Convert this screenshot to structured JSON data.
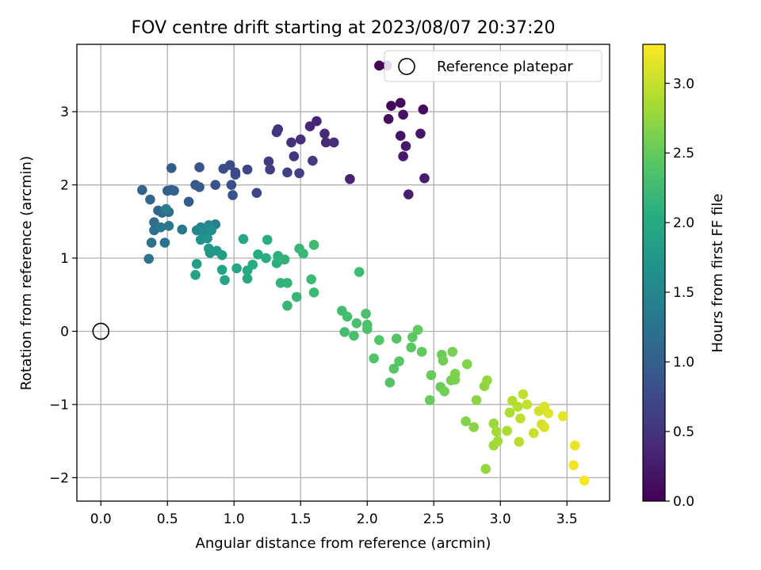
{
  "chart_data": {
    "type": "scatter",
    "title": "FOV centre drift starting at 2023/08/07 20:37:20",
    "xlabel": "Angular distance from reference (arcmin)",
    "ylabel": "Rotation from reference (arcmin)",
    "xlim": [
      -0.18,
      3.82
    ],
    "ylim": [
      -2.32,
      3.92
    ],
    "xticks": [
      0.0,
      0.5,
      1.0,
      1.5,
      2.0,
      2.5,
      3.0,
      3.5
    ],
    "xtick_labels": [
      "0.0",
      "0.5",
      "1.0",
      "1.5",
      "2.0",
      "2.5",
      "3.0",
      "3.5"
    ],
    "yticks": [
      -2,
      -1,
      0,
      1,
      2,
      3
    ],
    "ytick_labels": [
      "−2",
      "−1",
      "0",
      "1",
      "2",
      "3"
    ],
    "grid": true,
    "legend": {
      "placement": "top-right",
      "entries": [
        "Reference platepar"
      ]
    },
    "reference_point": {
      "x": 0.0,
      "y": 0.0
    },
    "colorbar": {
      "label": "Hours from first FF file",
      "range": [
        0.0,
        3.28
      ],
      "ticks": [
        0.0,
        0.5,
        1.0,
        1.5,
        2.0,
        2.5,
        3.0
      ],
      "tick_labels": [
        "0.0",
        "0.5",
        "1.0",
        "1.5",
        "2.0",
        "2.5",
        "3.0"
      ],
      "colormap": "viridis"
    },
    "points": [
      [
        2.09,
        3.63,
        0.0
      ],
      [
        2.15,
        3.63,
        0.02
      ],
      [
        2.18,
        3.08,
        0.05
      ],
      [
        2.25,
        3.12,
        0.07
      ],
      [
        2.42,
        3.03,
        0.1
      ],
      [
        2.16,
        2.9,
        0.12
      ],
      [
        2.27,
        2.96,
        0.15
      ],
      [
        2.25,
        2.67,
        0.17
      ],
      [
        2.4,
        2.7,
        0.2
      ],
      [
        2.29,
        2.53,
        0.22
      ],
      [
        2.27,
        2.39,
        0.24
      ],
      [
        2.43,
        2.09,
        0.27
      ],
      [
        2.31,
        1.87,
        0.29
      ],
      [
        1.87,
        2.08,
        0.31
      ],
      [
        1.62,
        2.87,
        0.34
      ],
      [
        1.57,
        2.8,
        0.36
      ],
      [
        1.68,
        2.7,
        0.38
      ],
      [
        1.69,
        2.58,
        0.4
      ],
      [
        1.75,
        2.58,
        0.42
      ],
      [
        1.5,
        2.62,
        0.45
      ],
      [
        1.43,
        2.58,
        0.47
      ],
      [
        1.33,
        2.76,
        0.49
      ],
      [
        1.32,
        2.72,
        0.51
      ],
      [
        1.45,
        2.39,
        0.54
      ],
      [
        1.59,
        2.33,
        0.56
      ],
      [
        1.26,
        2.32,
        0.58
      ],
      [
        1.27,
        2.21,
        0.61
      ],
      [
        1.4,
        2.17,
        0.63
      ],
      [
        1.49,
        2.16,
        0.65
      ],
      [
        1.17,
        1.89,
        0.68
      ],
      [
        1.1,
        2.21,
        0.7
      ],
      [
        1.01,
        2.17,
        0.72
      ],
      [
        1.01,
        2.14,
        0.75
      ],
      [
        0.97,
        2.27,
        0.77
      ],
      [
        0.92,
        2.22,
        0.79
      ],
      [
        0.98,
        2.0,
        0.82
      ],
      [
        0.99,
        1.86,
        0.84
      ],
      [
        0.86,
        2.0,
        0.86
      ],
      [
        0.74,
        2.24,
        0.89
      ],
      [
        0.71,
        2.0,
        0.91
      ],
      [
        0.74,
        1.97,
        0.93
      ],
      [
        0.66,
        1.77,
        0.96
      ],
      [
        0.53,
        2.23,
        0.98
      ],
      [
        0.53,
        1.93,
        1.0
      ],
      [
        0.5,
        1.92,
        1.02
      ],
      [
        0.55,
        1.92,
        1.05
      ],
      [
        0.31,
        1.93,
        1.07
      ],
      [
        0.37,
        1.8,
        1.09
      ],
      [
        0.43,
        1.65,
        1.11
      ],
      [
        0.46,
        1.62,
        1.14
      ],
      [
        0.51,
        1.63,
        1.16
      ],
      [
        0.4,
        1.49,
        1.18
      ],
      [
        0.4,
        1.38,
        1.2
      ],
      [
        0.38,
        1.21,
        1.23
      ],
      [
        0.48,
        1.21,
        1.25
      ],
      [
        0.36,
        0.99,
        1.27
      ],
      [
        0.61,
        1.39,
        1.29
      ],
      [
        0.51,
        1.44,
        1.32
      ],
      [
        0.45,
        1.42,
        1.34
      ],
      [
        0.49,
        1.67,
        1.36
      ],
      [
        0.86,
        1.46,
        1.38
      ],
      [
        0.72,
        1.38,
        1.46
      ],
      [
        0.75,
        1.42,
        1.5
      ],
      [
        0.81,
        1.45,
        1.54
      ],
      [
        0.77,
        1.35,
        1.58
      ],
      [
        0.83,
        1.38,
        1.61
      ],
      [
        0.75,
        1.25,
        1.65
      ],
      [
        0.8,
        1.27,
        1.69
      ],
      [
        0.82,
        1.07,
        1.72
      ],
      [
        0.87,
        1.1,
        1.76
      ],
      [
        0.81,
        1.13,
        1.78
      ],
      [
        0.91,
        1.04,
        1.82
      ],
      [
        0.72,
        0.92,
        1.85
      ],
      [
        0.71,
        0.77,
        1.88
      ],
      [
        0.91,
        0.84,
        1.9
      ],
      [
        0.93,
        0.7,
        1.93
      ],
      [
        1.02,
        0.86,
        1.95
      ],
      [
        1.07,
        1.26,
        1.97
      ],
      [
        1.1,
        0.72,
        1.99
      ],
      [
        1.1,
        0.83,
        2.0
      ],
      [
        1.14,
        0.91,
        2.02
      ],
      [
        1.18,
        1.05,
        2.04
      ],
      [
        1.24,
        1.0,
        2.05
      ],
      [
        1.25,
        1.25,
        2.07
      ],
      [
        1.32,
        0.93,
        2.08
      ],
      [
        1.33,
        1.03,
        2.1
      ],
      [
        1.35,
        0.98,
        2.11
      ],
      [
        1.38,
        0.98,
        2.13
      ],
      [
        1.35,
        0.66,
        2.14
      ],
      [
        1.4,
        0.66,
        2.15
      ],
      [
        1.4,
        0.35,
        2.17
      ],
      [
        1.47,
        0.47,
        2.18
      ],
      [
        1.49,
        1.13,
        2.19
      ],
      [
        1.52,
        1.06,
        2.21
      ],
      [
        1.58,
        0.71,
        2.22
      ],
      [
        1.6,
        0.53,
        2.23
      ],
      [
        1.6,
        1.18,
        2.24
      ],
      [
        1.94,
        0.81,
        2.25
      ],
      [
        1.81,
        0.28,
        2.27
      ],
      [
        1.83,
        -0.01,
        2.29
      ],
      [
        1.85,
        0.2,
        2.3
      ],
      [
        1.9,
        -0.06,
        2.31
      ],
      [
        1.92,
        0.11,
        2.32
      ],
      [
        1.99,
        0.24,
        2.33
      ],
      [
        2.0,
        0.09,
        2.34
      ],
      [
        2.0,
        0.03,
        2.35
      ],
      [
        2.05,
        -0.37,
        2.37
      ],
      [
        2.09,
        -0.12,
        2.38
      ],
      [
        2.17,
        -0.7,
        2.39
      ],
      [
        2.22,
        -0.1,
        2.4
      ],
      [
        2.2,
        -0.51,
        2.42
      ],
      [
        2.24,
        -0.41,
        2.43
      ],
      [
        2.33,
        -0.22,
        2.45
      ],
      [
        2.34,
        -0.08,
        2.46
      ],
      [
        2.38,
        0.02,
        2.48
      ],
      [
        2.41,
        -0.28,
        2.49
      ],
      [
        2.47,
        -0.94,
        2.51
      ],
      [
        2.48,
        -0.6,
        2.52
      ],
      [
        2.55,
        -0.76,
        2.54
      ],
      [
        2.56,
        -0.32,
        2.55
      ],
      [
        2.57,
        -0.4,
        2.57
      ],
      [
        2.58,
        -0.82,
        2.58
      ],
      [
        2.63,
        -0.67,
        2.6
      ],
      [
        2.64,
        -0.28,
        2.61
      ],
      [
        2.66,
        -0.66,
        2.62
      ],
      [
        2.66,
        -0.58,
        2.64
      ],
      [
        2.75,
        -0.45,
        2.65
      ],
      [
        2.74,
        -1.23,
        2.67
      ],
      [
        2.8,
        -1.31,
        2.69
      ],
      [
        2.82,
        -0.94,
        2.71
      ],
      [
        2.88,
        -0.75,
        2.73
      ],
      [
        2.9,
        -0.67,
        2.75
      ],
      [
        2.89,
        -1.88,
        2.77
      ],
      [
        2.95,
        -1.26,
        2.79
      ],
      [
        2.95,
        -1.56,
        2.81
      ],
      [
        2.97,
        -1.37,
        2.83
      ],
      [
        2.98,
        -1.5,
        2.85
      ],
      [
        3.05,
        -1.36,
        2.87
      ],
      [
        3.07,
        -1.11,
        2.89
      ],
      [
        3.09,
        -0.95,
        2.91
      ],
      [
        3.13,
        -1.03,
        2.93
      ],
      [
        3.14,
        -1.51,
        2.95
      ],
      [
        3.15,
        -1.19,
        2.97
      ],
      [
        3.17,
        -0.86,
        2.99
      ],
      [
        3.2,
        -1.0,
        3.01
      ],
      [
        3.25,
        -1.39,
        3.03
      ],
      [
        3.29,
        -1.09,
        3.05
      ],
      [
        3.31,
        -1.27,
        3.07
      ],
      [
        3.33,
        -1.03,
        3.09
      ],
      [
        3.33,
        -1.31,
        3.11
      ],
      [
        3.36,
        -1.12,
        3.13
      ],
      [
        3.47,
        -1.16,
        3.15
      ],
      [
        3.56,
        -1.56,
        3.18
      ],
      [
        3.55,
        -1.83,
        3.22
      ],
      [
        3.63,
        -2.04,
        3.26
      ]
    ]
  }
}
